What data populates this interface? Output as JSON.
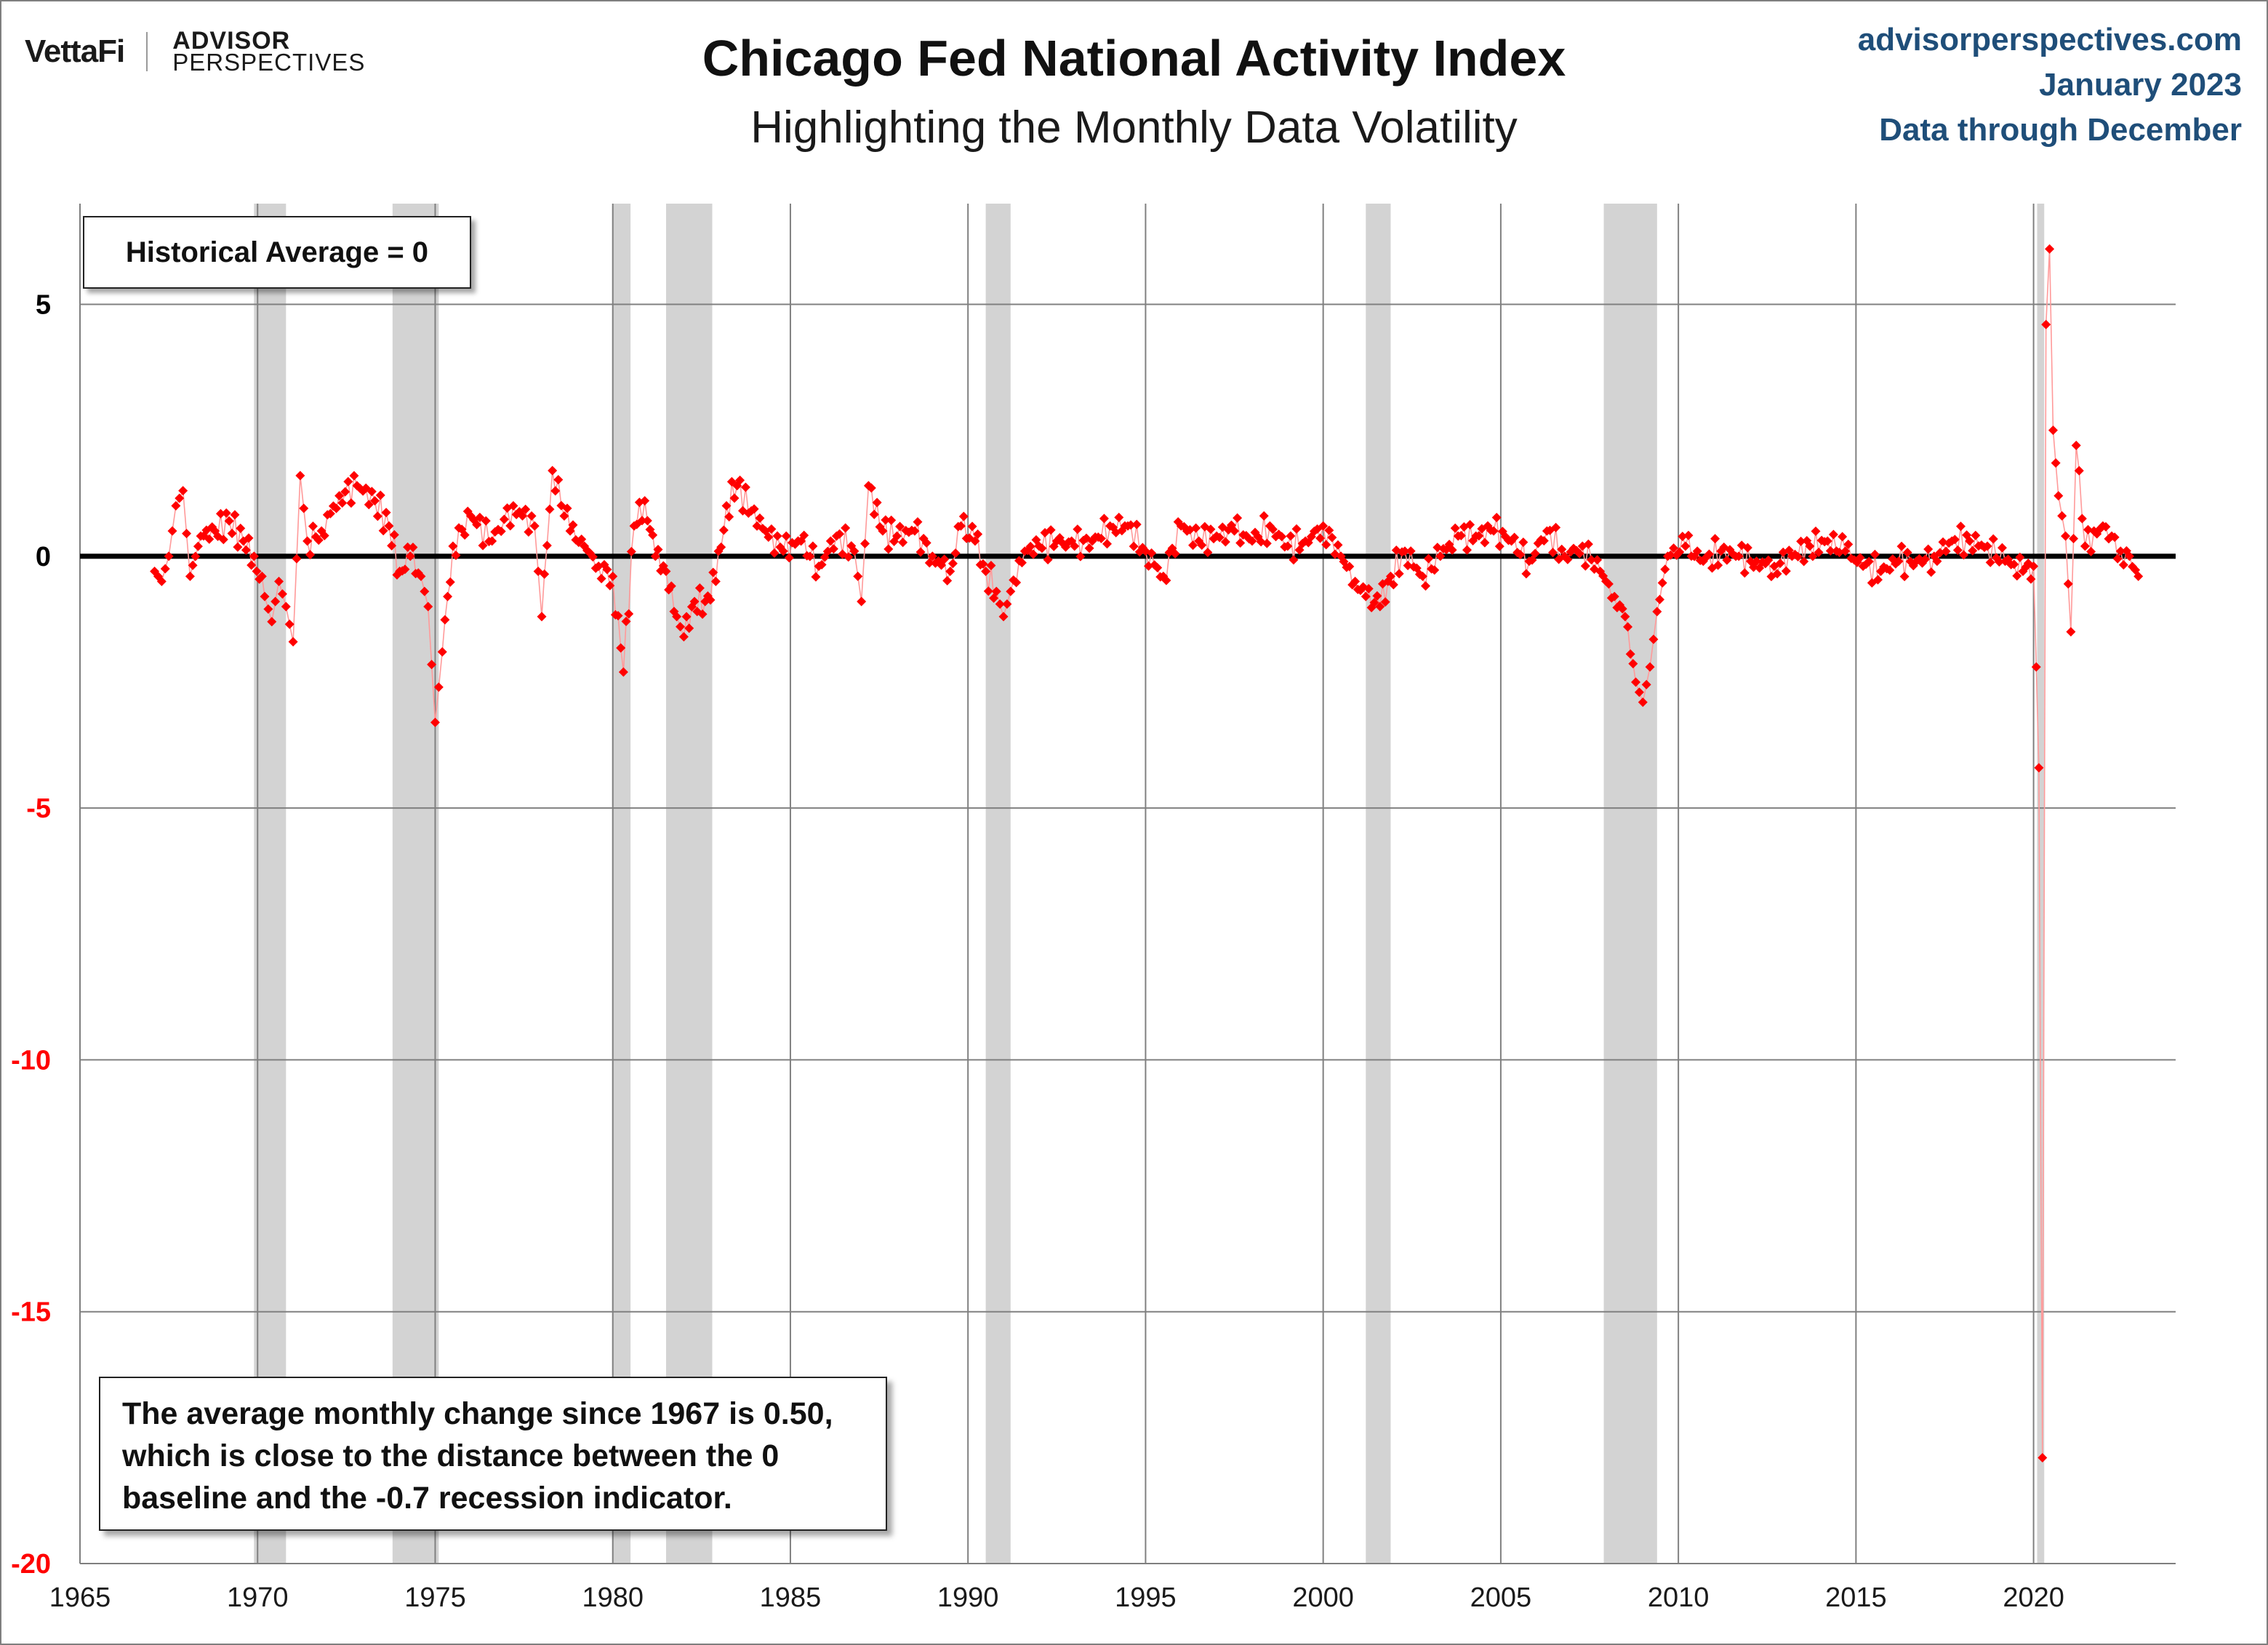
{
  "header": {
    "brand_vettafi": "VettaFi",
    "brand_ap_line1": "ADVISOR",
    "brand_ap_line2": "PERSPECTIVES",
    "title": "Chicago Fed National Activity Index",
    "subtitle": "Highlighting the Monthly Data Volatility",
    "site": "advisorperspectives.com",
    "date": "January 2023",
    "data_through": "Data through December"
  },
  "annotations": {
    "avg_label": "Historical Average = 0",
    "note": "The average monthly change since 1967 is 0.50, which is close to the distance between the 0 baseline and the -0.7 recession indicator."
  },
  "colors": {
    "series": "#ff0000",
    "recession": "#d3d3d3",
    "baseline": "#000000",
    "grid": "#808080",
    "header_blue": "#1f4e79",
    "negative_tick": "#ff0000",
    "positive_tick": "#000000"
  },
  "chart_data": {
    "type": "scatter",
    "title": "Chicago Fed National Activity Index",
    "subtitle": "Highlighting the Monthly Data Volatility",
    "xlabel": "",
    "ylabel": "",
    "xlim": [
      1965,
      2024
    ],
    "ylim": [
      -20,
      7
    ],
    "x_ticks": [
      1965,
      1970,
      1975,
      1980,
      1985,
      1990,
      1995,
      2000,
      2005,
      2010,
      2015,
      2020
    ],
    "y_ticks": [
      5,
      0,
      -5,
      -10,
      -15,
      -20
    ],
    "grid": true,
    "baseline": 0,
    "marker": "diamond",
    "recessions": [
      {
        "start": 1969.9,
        "end": 1970.8
      },
      {
        "start": 1973.8,
        "end": 1975.1
      },
      {
        "start": 1980.0,
        "end": 1980.5
      },
      {
        "start": 1981.5,
        "end": 1982.8
      },
      {
        "start": 1990.5,
        "end": 1991.2
      },
      {
        "start": 2001.2,
        "end": 2001.9
      },
      {
        "start": 2007.9,
        "end": 2009.4
      },
      {
        "start": 2020.1,
        "end": 2020.3
      }
    ],
    "anchors": [
      [
        1967.1,
        -0.3
      ],
      [
        1967.3,
        -0.5
      ],
      [
        1967.5,
        0.0
      ],
      [
        1967.7,
        1.0
      ],
      [
        1967.9,
        1.3
      ],
      [
        1968.1,
        -0.4
      ],
      [
        1968.4,
        0.4
      ],
      [
        1968.8,
        0.5
      ],
      [
        1969.2,
        0.7
      ],
      [
        1969.6,
        0.3
      ],
      [
        1969.9,
        0.0
      ],
      [
        1970.2,
        -0.8
      ],
      [
        1970.4,
        -1.3
      ],
      [
        1970.6,
        -0.5
      ],
      [
        1970.8,
        -1.0
      ],
      [
        1971.0,
        -1.7
      ],
      [
        1971.2,
        1.6
      ],
      [
        1971.4,
        0.3
      ],
      [
        1971.8,
        0.5
      ],
      [
        1972.3,
        1.2
      ],
      [
        1972.8,
        1.4
      ],
      [
        1973.3,
        1.1
      ],
      [
        1973.7,
        0.6
      ],
      [
        1974.0,
        -0.3
      ],
      [
        1974.3,
        0.0
      ],
      [
        1974.6,
        -0.4
      ],
      [
        1974.8,
        -1.0
      ],
      [
        1975.0,
        -3.3
      ],
      [
        1975.2,
        -1.9
      ],
      [
        1975.5,
        0.2
      ],
      [
        1976.0,
        0.8
      ],
      [
        1976.6,
        0.3
      ],
      [
        1977.2,
        1.0
      ],
      [
        1977.8,
        0.6
      ],
      [
        1978.0,
        -1.2
      ],
      [
        1978.3,
        1.7
      ],
      [
        1978.8,
        0.5
      ],
      [
        1979.2,
        0.2
      ],
      [
        1979.6,
        -0.2
      ],
      [
        1980.0,
        -0.4
      ],
      [
        1980.3,
        -2.3
      ],
      [
        1980.6,
        0.6
      ],
      [
        1980.9,
        1.1
      ],
      [
        1981.2,
        0.0
      ],
      [
        1981.5,
        -0.3
      ],
      [
        1981.8,
        -1.2
      ],
      [
        1982.0,
        -1.6
      ],
      [
        1982.3,
        -0.9
      ],
      [
        1982.6,
        -0.9
      ],
      [
        1982.9,
        -0.5
      ],
      [
        1983.2,
        1.0
      ],
      [
        1983.5,
        1.4
      ],
      [
        1983.9,
        0.9
      ],
      [
        1984.3,
        0.5
      ],
      [
        1984.8,
        0.1
      ],
      [
        1985.3,
        0.3
      ],
      [
        1985.8,
        -0.2
      ],
      [
        1986.3,
        0.4
      ],
      [
        1986.8,
        0.1
      ],
      [
        1987.0,
        -0.9
      ],
      [
        1987.2,
        1.4
      ],
      [
        1987.6,
        0.5
      ],
      [
        1988.0,
        0.4
      ],
      [
        1988.5,
        0.5
      ],
      [
        1989.0,
        0.0
      ],
      [
        1989.5,
        -0.3
      ],
      [
        1989.8,
        0.6
      ],
      [
        1990.2,
        0.3
      ],
      [
        1990.5,
        -0.3
      ],
      [
        1990.8,
        -0.7
      ],
      [
        1991.0,
        -1.2
      ],
      [
        1991.2,
        -0.7
      ],
      [
        1991.6,
        0.1
      ],
      [
        1992.0,
        0.2
      ],
      [
        1992.5,
        0.3
      ],
      [
        1993.0,
        0.2
      ],
      [
        1993.5,
        0.3
      ],
      [
        1994.0,
        0.6
      ],
      [
        1994.5,
        0.6
      ],
      [
        1995.0,
        0.1
      ],
      [
        1995.5,
        -0.4
      ],
      [
        1996.0,
        0.6
      ],
      [
        1996.5,
        0.3
      ],
      [
        1997.0,
        0.4
      ],
      [
        1997.5,
        0.5
      ],
      [
        1998.0,
        0.3
      ],
      [
        1998.5,
        0.6
      ],
      [
        1999.0,
        0.2
      ],
      [
        1999.5,
        0.3
      ],
      [
        2000.0,
        0.6
      ],
      [
        2000.5,
        0.0
      ],
      [
        2000.9,
        -0.5
      ],
      [
        2001.2,
        -0.8
      ],
      [
        2001.6,
        -1.0
      ],
      [
        2001.9,
        -0.4
      ],
      [
        2002.3,
        0.1
      ],
      [
        2002.8,
        -0.4
      ],
      [
        2003.3,
        0.0
      ],
      [
        2003.8,
        0.4
      ],
      [
        2004.3,
        0.4
      ],
      [
        2004.8,
        0.5
      ],
      [
        2005.3,
        0.3
      ],
      [
        2005.8,
        -0.1
      ],
      [
        2006.3,
        0.5
      ],
      [
        2006.8,
        0.0
      ],
      [
        2007.3,
        0.2
      ],
      [
        2007.8,
        -0.3
      ],
      [
        2008.2,
        -0.8
      ],
      [
        2008.5,
        -1.2
      ],
      [
        2008.8,
        -2.5
      ],
      [
        2009.0,
        -2.9
      ],
      [
        2009.2,
        -2.2
      ],
      [
        2009.4,
        -1.1
      ],
      [
        2009.7,
        0.0
      ],
      [
        2010.2,
        0.2
      ],
      [
        2010.7,
        -0.1
      ],
      [
        2011.2,
        0.1
      ],
      [
        2011.7,
        0.0
      ],
      [
        2012.2,
        -0.1
      ],
      [
        2012.7,
        -0.2
      ],
      [
        2013.2,
        0.0
      ],
      [
        2013.7,
        0.2
      ],
      [
        2014.2,
        0.3
      ],
      [
        2014.7,
        0.1
      ],
      [
        2015.2,
        -0.2
      ],
      [
        2015.7,
        -0.3
      ],
      [
        2016.2,
        -0.1
      ],
      [
        2016.7,
        -0.1
      ],
      [
        2017.2,
        0.0
      ],
      [
        2017.7,
        0.3
      ],
      [
        2018.2,
        0.3
      ],
      [
        2018.7,
        0.2
      ],
      [
        2019.2,
        -0.1
      ],
      [
        2019.7,
        -0.3
      ],
      [
        2020.0,
        -0.2
      ],
      [
        2020.15,
        -4.2
      ],
      [
        2020.25,
        -17.9
      ],
      [
        2020.35,
        4.6
      ],
      [
        2020.45,
        6.1
      ],
      [
        2020.55,
        2.5
      ],
      [
        2020.7,
        1.2
      ],
      [
        2020.9,
        0.4
      ],
      [
        2021.05,
        -1.5
      ],
      [
        2021.2,
        2.2
      ],
      [
        2021.45,
        0.2
      ],
      [
        2021.7,
        0.5
      ],
      [
        2021.95,
        0.6
      ],
      [
        2022.2,
        0.4
      ],
      [
        2022.45,
        0.1
      ],
      [
        2022.7,
        0.0
      ],
      [
        2022.95,
        -0.4
      ]
    ]
  }
}
